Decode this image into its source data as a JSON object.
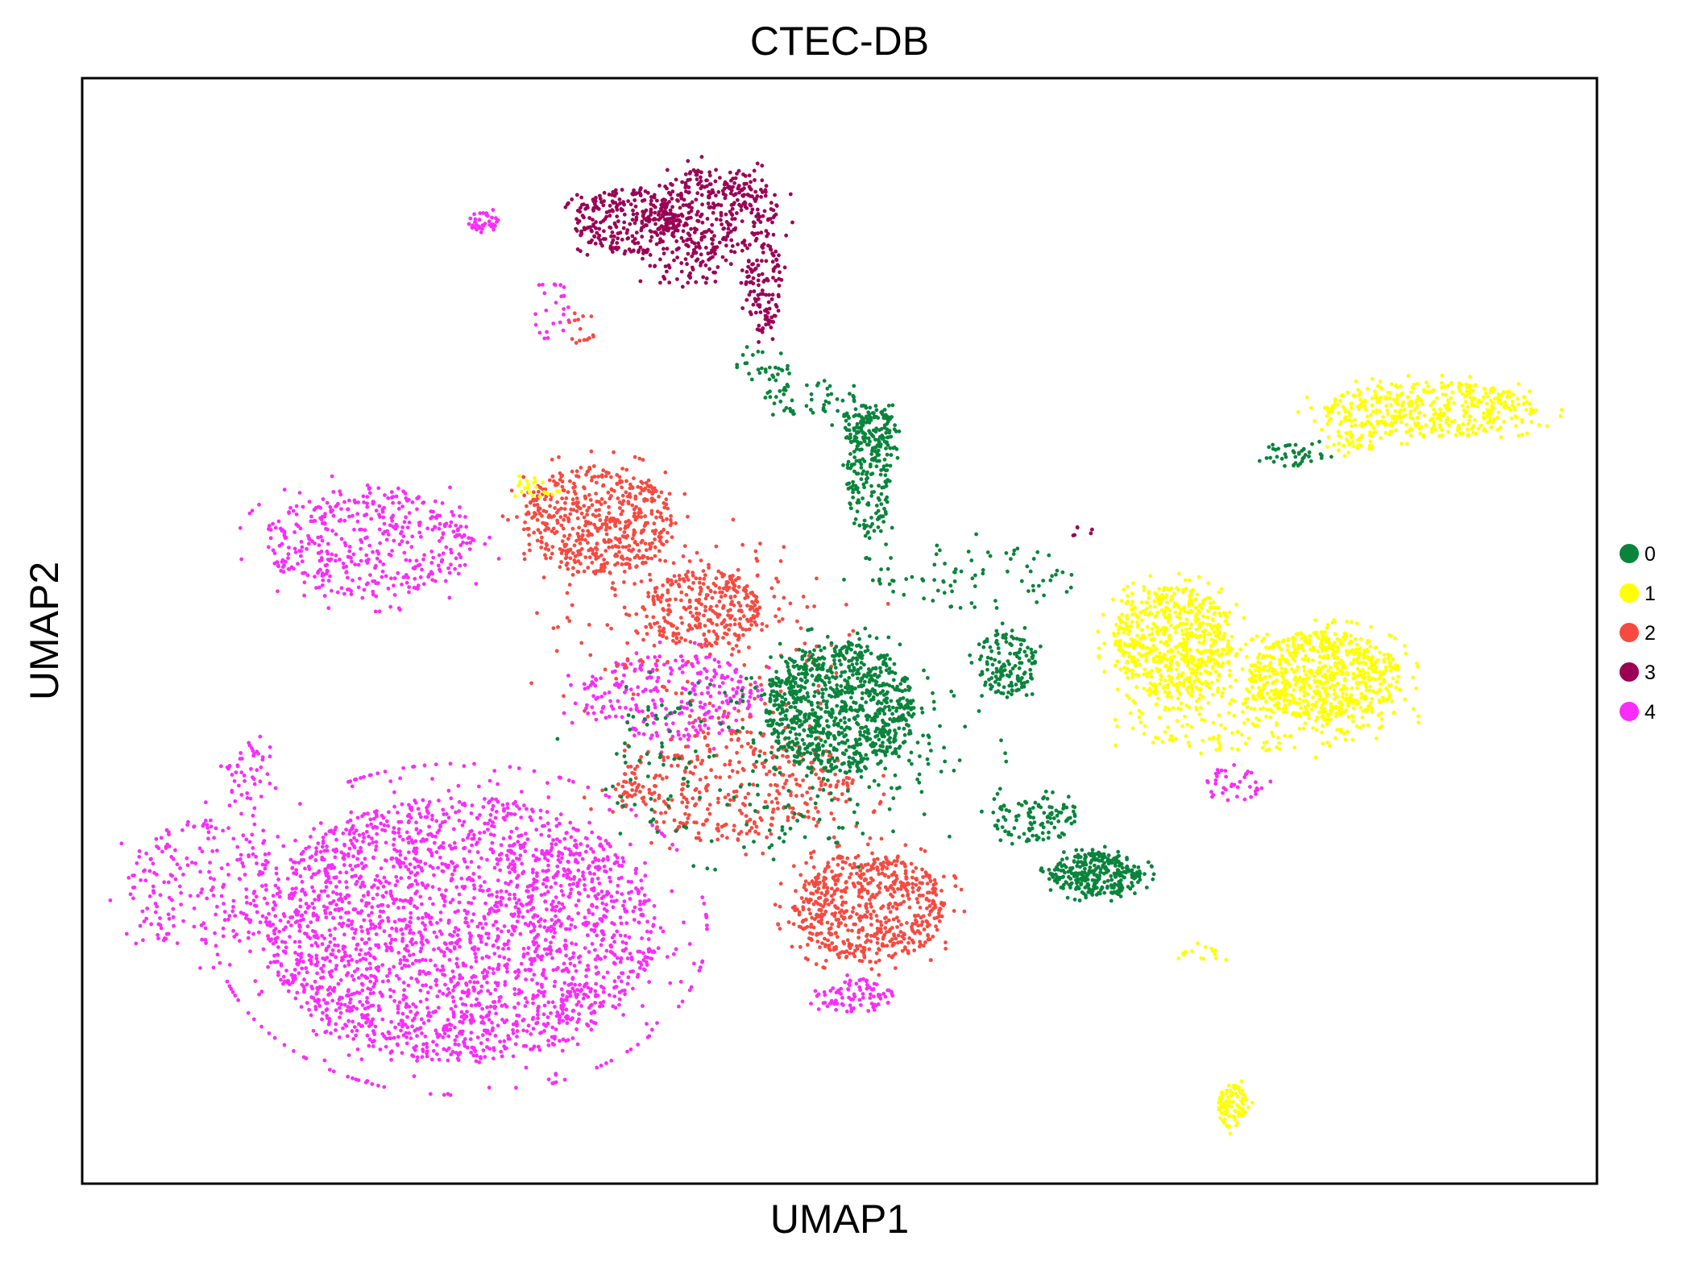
{
  "chart_data": {
    "type": "scatter",
    "title": "CTEC-DB",
    "xlabel": "UMAP1",
    "ylabel": "UMAP2",
    "xticks": [],
    "yticks": [],
    "grid": false,
    "legend": {
      "placement": "right",
      "entries": [
        {
          "label": "0",
          "color": "#0a843c"
        },
        {
          "label": "1",
          "color": "#ffff00"
        },
        {
          "label": "2",
          "color": "#f64a41"
        },
        {
          "label": "3",
          "color": "#9b0055"
        },
        {
          "label": "4",
          "color": "#fa2cfa"
        }
      ]
    },
    "xlim": [
      0,
      100
    ],
    "ylim": [
      0,
      100
    ],
    "clusters": [
      {
        "label": "4",
        "color": "#fa2cfa",
        "regions": [
          {
            "cx": 25,
            "cy": 23,
            "rx": 13,
            "ry": 12,
            "n": 2600
          },
          {
            "cx": 19,
            "cy": 58,
            "rx": 7,
            "ry": 5,
            "n": 450
          },
          {
            "cx": 8,
            "cy": 27,
            "rx": 5,
            "ry": 6,
            "n": 220
          },
          {
            "cx": 11,
            "cy": 37,
            "rx": 1.5,
            "ry": 3,
            "n": 50
          },
          {
            "cx": 39,
            "cy": 44,
            "rx": 6,
            "ry": 4,
            "n": 300
          },
          {
            "cx": 51,
            "cy": 17,
            "rx": 2.5,
            "ry": 1.5,
            "n": 90
          },
          {
            "cx": 26.5,
            "cy": 87,
            "rx": 1,
            "ry": 1,
            "n": 40
          },
          {
            "cx": 31,
            "cy": 79,
            "rx": 1.3,
            "ry": 3,
            "n": 25
          },
          {
            "cx": 76,
            "cy": 36,
            "rx": 2,
            "ry": 1.5,
            "n": 40
          }
        ]
      },
      {
        "label": "2",
        "color": "#f64a41",
        "regions": [
          {
            "cx": 34,
            "cy": 60,
            "rx": 5,
            "ry": 5,
            "n": 550
          },
          {
            "cx": 41,
            "cy": 52,
            "rx": 4,
            "ry": 3.5,
            "n": 300
          },
          {
            "cx": 52,
            "cy": 25,
            "rx": 5,
            "ry": 5,
            "n": 650
          },
          {
            "cx": 43,
            "cy": 36,
            "rx": 8,
            "ry": 5,
            "n": 400
          },
          {
            "cx": 41,
            "cy": 50,
            "rx": 10,
            "ry": 9,
            "n": 150
          },
          {
            "cx": 33,
            "cy": 77,
            "rx": 1,
            "ry": 2,
            "n": 15
          }
        ]
      },
      {
        "label": "0",
        "color": "#0a843c",
        "regions": [
          {
            "cx": 50,
            "cy": 43,
            "rx": 5,
            "ry": 6,
            "n": 900
          },
          {
            "cx": 52,
            "cy": 64,
            "rx": 1.5,
            "ry": 6,
            "n": 200
          },
          {
            "cx": 52,
            "cy": 68.5,
            "rx": 2,
            "ry": 2,
            "n": 110
          },
          {
            "cx": 48,
            "cy": 71,
            "rx": 3,
            "ry": 1.5,
            "n": 50
          },
          {
            "cx": 45,
            "cy": 74,
            "rx": 2,
            "ry": 1.5,
            "n": 30
          },
          {
            "cx": 61,
            "cy": 47,
            "rx": 2,
            "ry": 3,
            "n": 150
          },
          {
            "cx": 67,
            "cy": 28,
            "rx": 3,
            "ry": 2,
            "n": 320
          },
          {
            "cx": 63,
            "cy": 33,
            "rx": 3,
            "ry": 2,
            "n": 110
          },
          {
            "cx": 59,
            "cy": 55,
            "rx": 7,
            "ry": 3,
            "n": 80
          },
          {
            "cx": 80,
            "cy": 66,
            "rx": 2,
            "ry": 1.2,
            "n": 45
          },
          {
            "cx": 46,
            "cy": 38,
            "rx": 12,
            "ry": 8,
            "n": 250
          }
        ]
      },
      {
        "label": "1",
        "color": "#ffff00",
        "regions": [
          {
            "cx": 72,
            "cy": 49,
            "rx": 4,
            "ry": 5,
            "n": 650
          },
          {
            "cx": 82,
            "cy": 46,
            "rx": 5,
            "ry": 4,
            "n": 700
          },
          {
            "cx": 77,
            "cy": 42,
            "rx": 9,
            "ry": 3,
            "n": 200
          },
          {
            "cx": 89,
            "cy": 70,
            "rx": 7,
            "ry": 2.5,
            "n": 450
          },
          {
            "cx": 84,
            "cy": 67,
            "rx": 1.5,
            "ry": 1,
            "n": 40
          },
          {
            "cx": 76,
            "cy": 7,
            "rx": 1,
            "ry": 2,
            "n": 90
          },
          {
            "cx": 74,
            "cy": 21,
            "rx": 1.5,
            "ry": 1,
            "n": 15
          },
          {
            "cx": 30,
            "cy": 63,
            "rx": 1.5,
            "ry": 1,
            "n": 25
          }
        ]
      },
      {
        "label": "3",
        "color": "#9b0055",
        "regions": [
          {
            "cx": 36,
            "cy": 87,
            "rx": 3.5,
            "ry": 3,
            "n": 300
          },
          {
            "cx": 42,
            "cy": 88,
            "rx": 4,
            "ry": 4,
            "n": 350
          },
          {
            "cx": 45,
            "cy": 81,
            "rx": 1.2,
            "ry": 4,
            "n": 120
          },
          {
            "cx": 40,
            "cy": 83,
            "rx": 3,
            "ry": 2,
            "n": 60
          },
          {
            "cx": 66,
            "cy": 59,
            "rx": 1,
            "ry": 0.5,
            "n": 6
          }
        ]
      }
    ]
  }
}
